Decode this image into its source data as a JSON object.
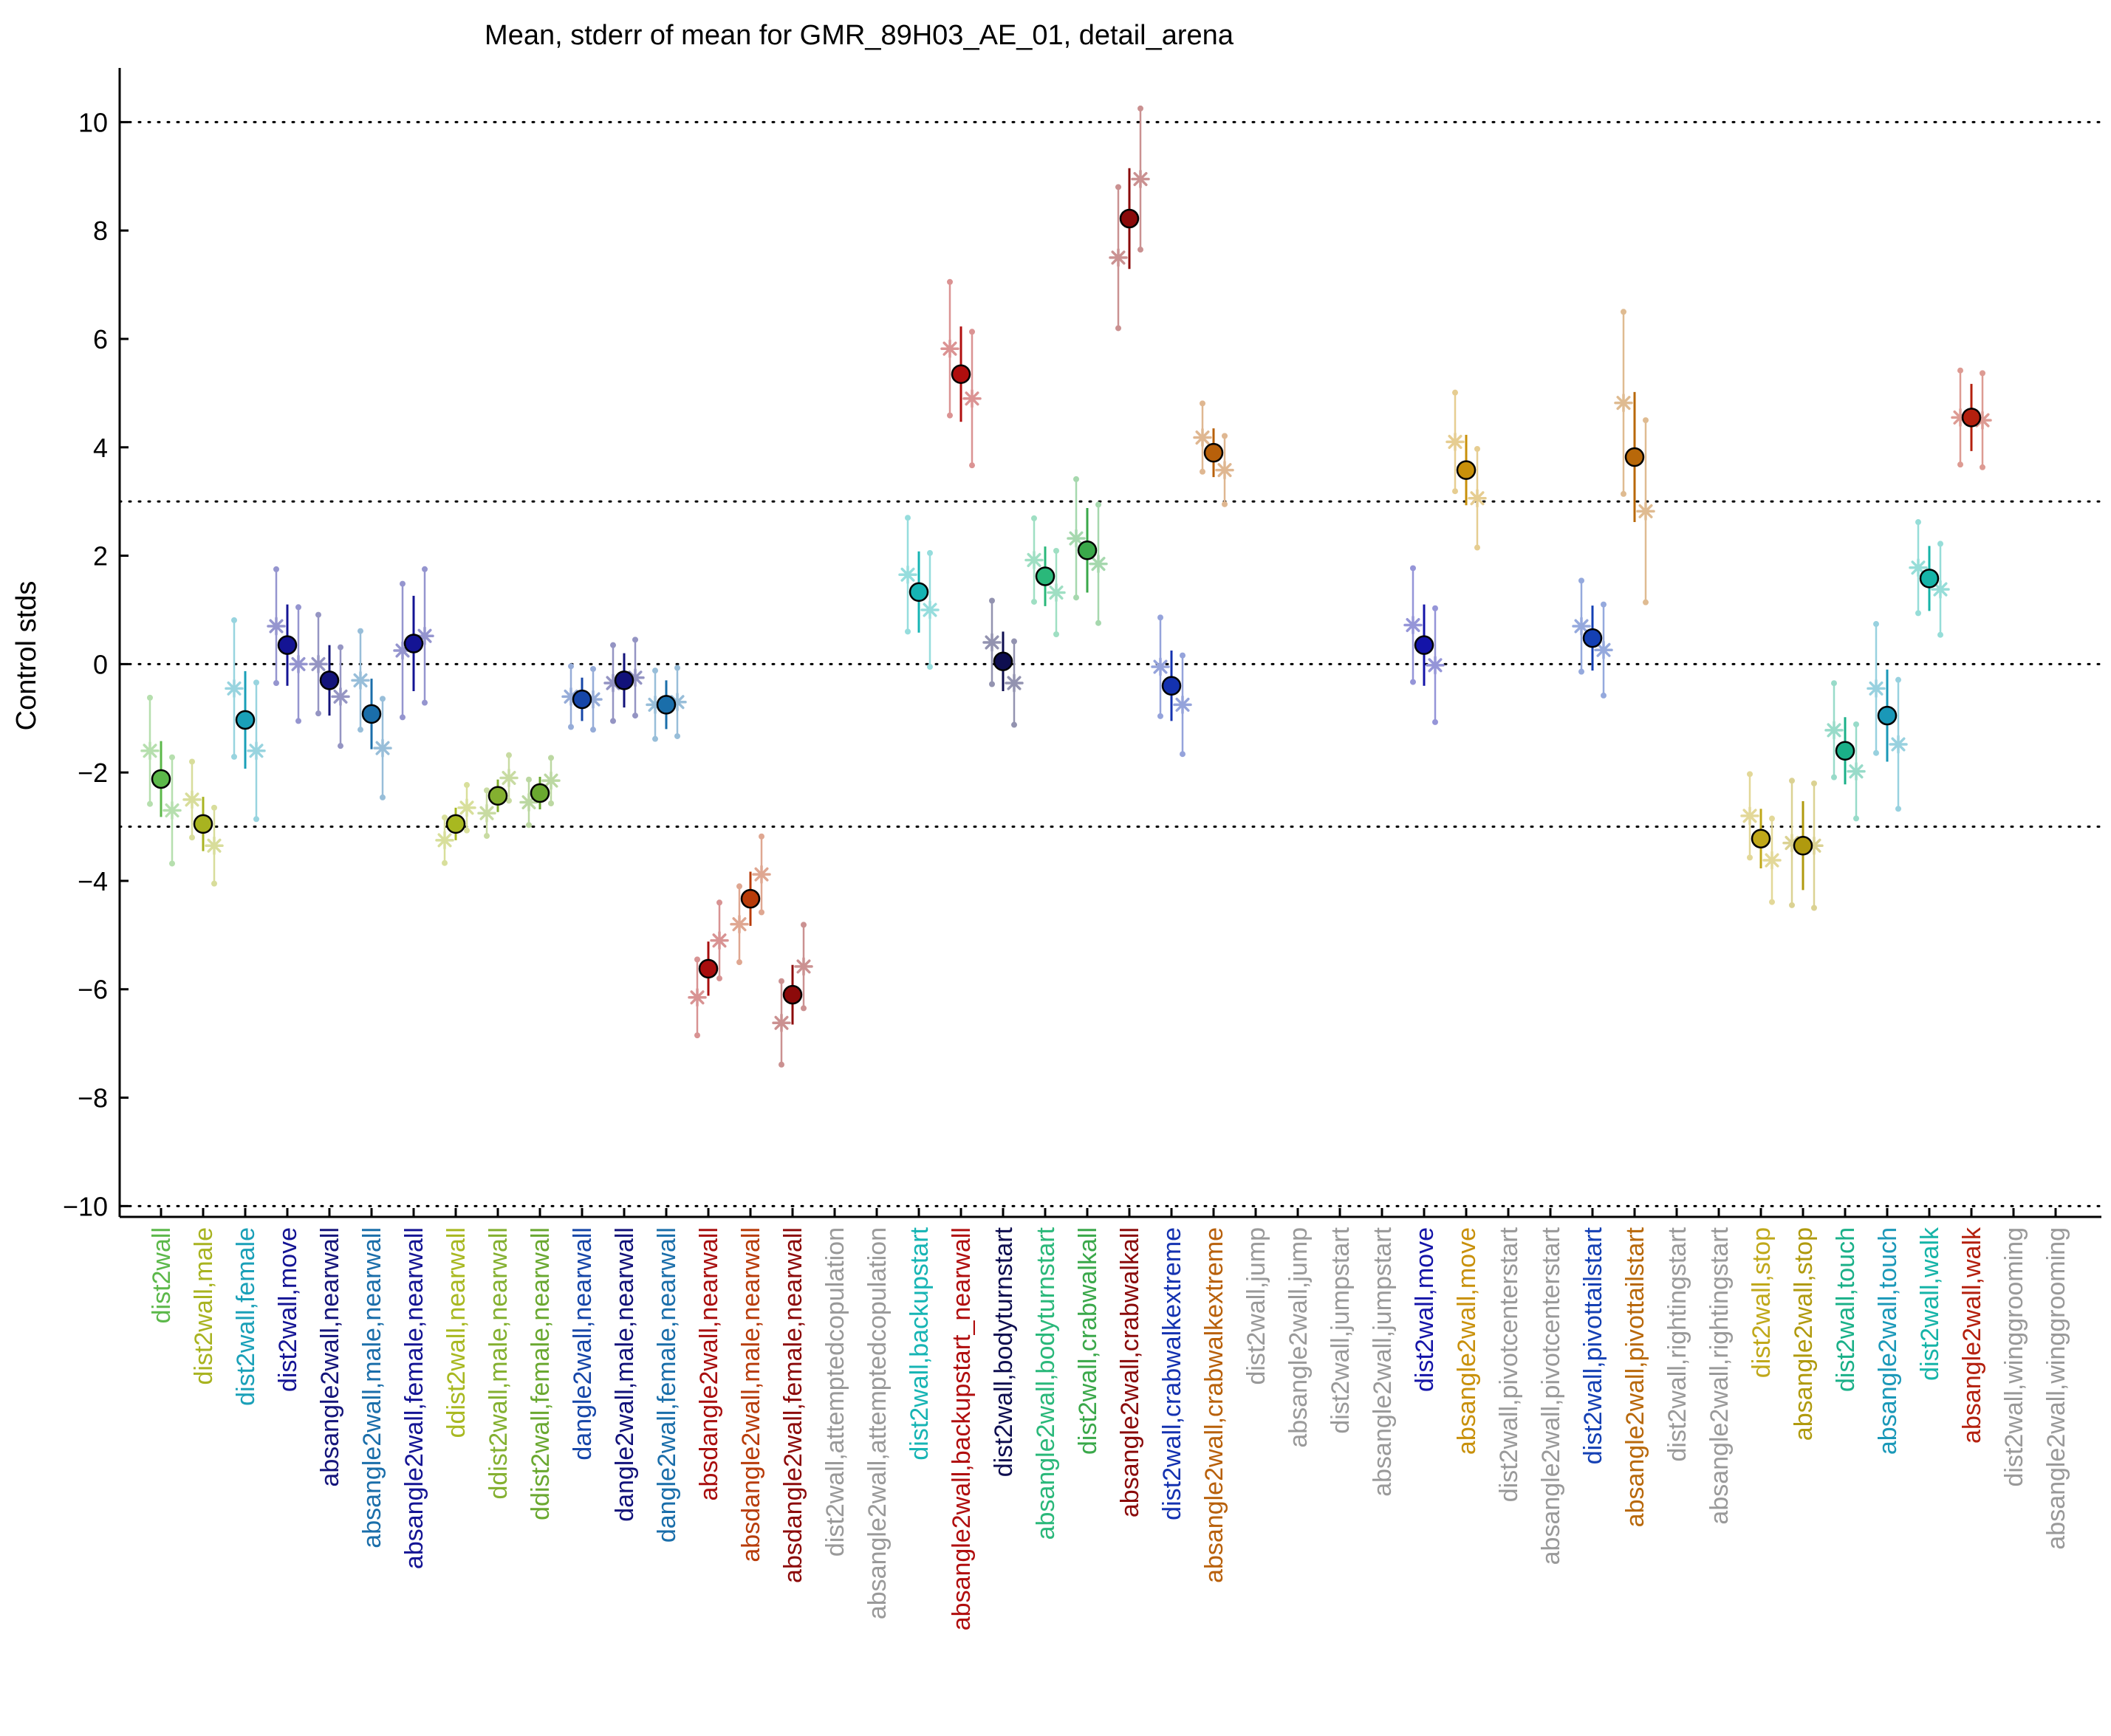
{
  "chart_data": {
    "type": "scatter",
    "title": "Mean, stderr of mean for GMR_89H03_AE_01, detail_arena",
    "ylabel": "Control stds",
    "xlabel": "",
    "ylim": [
      -10.2,
      11.0
    ],
    "yticks": [
      -10,
      -8,
      -6,
      -4,
      -2,
      0,
      2,
      4,
      6,
      8,
      10
    ],
    "ytick_labels": [
      "−10",
      "−8",
      "−6",
      "−4",
      "−2",
      "0",
      "2",
      "4",
      "6",
      "8",
      "10"
    ],
    "reference_lines": [
      -10,
      -3,
      0,
      3,
      10
    ],
    "grid": false,
    "legend": "none",
    "markers": {
      "mean": "filled circle with black edge",
      "sex": "asterisk (male left, female right)"
    },
    "categories": [
      {
        "label": "dist2wall",
        "color": "#5cb84a",
        "mean": -2.12,
        "sem": 0.7,
        "male": -1.6,
        "female": -2.7
      },
      {
        "label": "dist2wall,male",
        "color": "#a8b320",
        "mean": -2.95,
        "sem": 0.5,
        "male": -2.5,
        "female": -3.35
      },
      {
        "label": "dist2wall,female",
        "color": "#1aa0b8",
        "mean": -1.03,
        "sem": 0.9,
        "male": -0.45,
        "female": -1.6
      },
      {
        "label": "dist2wall,move",
        "color": "#141494",
        "mean": 0.35,
        "sem": 0.75,
        "male": 0.7,
        "female": 0.0
      },
      {
        "label": "absangle2wall,nearwall",
        "color": "#14147a",
        "mean": -0.3,
        "sem": 0.65,
        "male": 0.0,
        "female": -0.6
      },
      {
        "label": "absangle2wall,male,nearwall",
        "color": "#1a6eaa",
        "mean": -0.92,
        "sem": 0.65,
        "male": -0.3,
        "female": -1.55
      },
      {
        "label": "absangle2wall,female,nearwall",
        "color": "#141494",
        "mean": 0.38,
        "sem": 0.88,
        "male": 0.25,
        "female": 0.52
      },
      {
        "label": "ddist2wall,nearwall",
        "color": "#a8b820",
        "mean": -2.95,
        "sem": 0.3,
        "male": -3.25,
        "female": -2.65
      },
      {
        "label": "ddist2wall,male,nearwall",
        "color": "#84b030",
        "mean": -2.43,
        "sem": 0.3,
        "male": -2.75,
        "female": -2.1
      },
      {
        "label": "ddist2wall,female,nearwall",
        "color": "#6aa830",
        "mean": -2.38,
        "sem": 0.3,
        "male": -2.55,
        "female": -2.15
      },
      {
        "label": "dangle2wall,nearwall",
        "color": "#1646a8",
        "mean": -0.65,
        "sem": 0.4,
        "male": -0.6,
        "female": -0.65
      },
      {
        "label": "dangle2wall,male,nearwall",
        "color": "#12127a",
        "mean": -0.3,
        "sem": 0.5,
        "male": -0.35,
        "female": -0.25
      },
      {
        "label": "dangle2wall,female,nearwall",
        "color": "#1a6eaa",
        "mean": -0.75,
        "sem": 0.45,
        "male": -0.75,
        "female": -0.7
      },
      {
        "label": "absdangle2wall,nearwall",
        "color": "#a80e0e",
        "mean": -5.62,
        "sem": 0.5,
        "male": -6.15,
        "female": -5.1
      },
      {
        "label": "absdangle2wall,male,nearwall",
        "color": "#b83c0a",
        "mean": -4.33,
        "sem": 0.5,
        "male": -4.8,
        "female": -3.88
      },
      {
        "label": "absdangle2wall,female,nearwall",
        "color": "#8c0a0a",
        "mean": -6.1,
        "sem": 0.55,
        "male": -6.62,
        "female": -5.58
      },
      {
        "label": "dist2wall,attemptedcopulation",
        "color": "#999999",
        "mean": null,
        "sem": null,
        "male": null,
        "female": null
      },
      {
        "label": "absangle2wall,attemptedcopulation",
        "color": "#999999",
        "mean": null,
        "sem": null,
        "male": null,
        "female": null
      },
      {
        "label": "dist2wall,backupstart",
        "color": "#16b4b4",
        "mean": 1.33,
        "sem": 0.75,
        "male": 1.65,
        "female": 1.0
      },
      {
        "label": "absangle2wall,backupstart_nearwall",
        "color": "#b00e0e",
        "mean": 5.35,
        "sem": 0.88,
        "male": 5.82,
        "female": 4.9
      },
      {
        "label": "dist2wall,bodyturnstart",
        "color": "#0e0e50",
        "mean": 0.05,
        "sem": 0.55,
        "male": 0.4,
        "female": -0.35
      },
      {
        "label": "absangle2wall,bodyturnstart",
        "color": "#2ab87a",
        "mean": 1.62,
        "sem": 0.55,
        "male": 1.92,
        "female": 1.32
      },
      {
        "label": "dist2wall,crabwalkall",
        "color": "#3aa84a",
        "mean": 2.1,
        "sem": 0.78,
        "male": 2.32,
        "female": 1.85
      },
      {
        "label": "absangle2wall,crabwalkall",
        "color": "#8a0a0a",
        "mean": 8.22,
        "sem": 0.93,
        "male": 7.5,
        "female": 8.95
      },
      {
        "label": "dist2wall,crabwalkextreme",
        "color": "#1432b0",
        "mean": -0.4,
        "sem": 0.65,
        "male": -0.05,
        "female": -0.75
      },
      {
        "label": "absangle2wall,crabwalkextreme",
        "color": "#b8600a",
        "mean": 3.9,
        "sem": 0.45,
        "male": 4.18,
        "female": 3.58
      },
      {
        "label": "dist2wall,jump",
        "color": "#999999",
        "mean": null,
        "sem": null,
        "male": null,
        "female": null
      },
      {
        "label": "absangle2wall,jump",
        "color": "#999999",
        "mean": null,
        "sem": null,
        "male": null,
        "female": null
      },
      {
        "label": "dist2wall,jumpstart",
        "color": "#999999",
        "mean": null,
        "sem": null,
        "male": null,
        "female": null
      },
      {
        "label": "absangle2wall,jumpstart",
        "color": "#999999",
        "mean": null,
        "sem": null,
        "male": null,
        "female": null
      },
      {
        "label": "dist2wall,move",
        "color": "#1414a8",
        "mean": 0.35,
        "sem": 0.75,
        "male": 0.72,
        "female": -0.02
      },
      {
        "label": "absangle2wall,move",
        "color": "#c8900a",
        "mean": 3.58,
        "sem": 0.65,
        "male": 4.1,
        "female": 3.06
      },
      {
        "label": "dist2wall,pivotcenterstart",
        "color": "#999999",
        "mean": null,
        "sem": null,
        "male": null,
        "female": null
      },
      {
        "label": "absangle2wall,pivotcenterstart",
        "color": "#999999",
        "mean": null,
        "sem": null,
        "male": null,
        "female": null
      },
      {
        "label": "dist2wall,pivottailstart",
        "color": "#1440b4",
        "mean": 0.48,
        "sem": 0.6,
        "male": 0.7,
        "female": 0.26
      },
      {
        "label": "absangle2wall,pivottailstart",
        "color": "#b8680a",
        "mean": 3.82,
        "sem": 1.2,
        "male": 4.82,
        "female": 2.82
      },
      {
        "label": "dist2wall,rightingstart",
        "color": "#999999",
        "mean": null,
        "sem": null,
        "male": null,
        "female": null
      },
      {
        "label": "absangle2wall,rightingstart",
        "color": "#999999",
        "mean": null,
        "sem": null,
        "male": null,
        "female": null
      },
      {
        "label": "dist2wall,stop",
        "color": "#c0a81a",
        "mean": -3.22,
        "sem": 0.55,
        "male": -2.8,
        "female": -3.62
      },
      {
        "label": "absangle2wall,stop",
        "color": "#b09a0e",
        "mean": -3.35,
        "sem": 0.82,
        "male": -3.3,
        "female": -3.35
      },
      {
        "label": "dist2wall,touch",
        "color": "#1ab088",
        "mean": -1.6,
        "sem": 0.62,
        "male": -1.22,
        "female": -1.98
      },
      {
        "label": "absangle2wall,touch",
        "color": "#1a98b8",
        "mean": -0.95,
        "sem": 0.85,
        "male": -0.45,
        "female": -1.48
      },
      {
        "label": "dist2wall,walk",
        "color": "#16b4a8",
        "mean": 1.58,
        "sem": 0.6,
        "male": 1.78,
        "female": 1.38
      },
      {
        "label": "absangle2wall,walk",
        "color": "#b4200e",
        "mean": 4.55,
        "sem": 0.62,
        "male": 4.55,
        "female": 4.5
      },
      {
        "label": "dist2wall,winggrooming",
        "color": "#999999",
        "mean": null,
        "sem": null,
        "male": null,
        "female": null
      },
      {
        "label": "absangle2wall,winggrooming",
        "color": "#999999",
        "mean": null,
        "sem": null,
        "male": null,
        "female": null
      }
    ]
  }
}
